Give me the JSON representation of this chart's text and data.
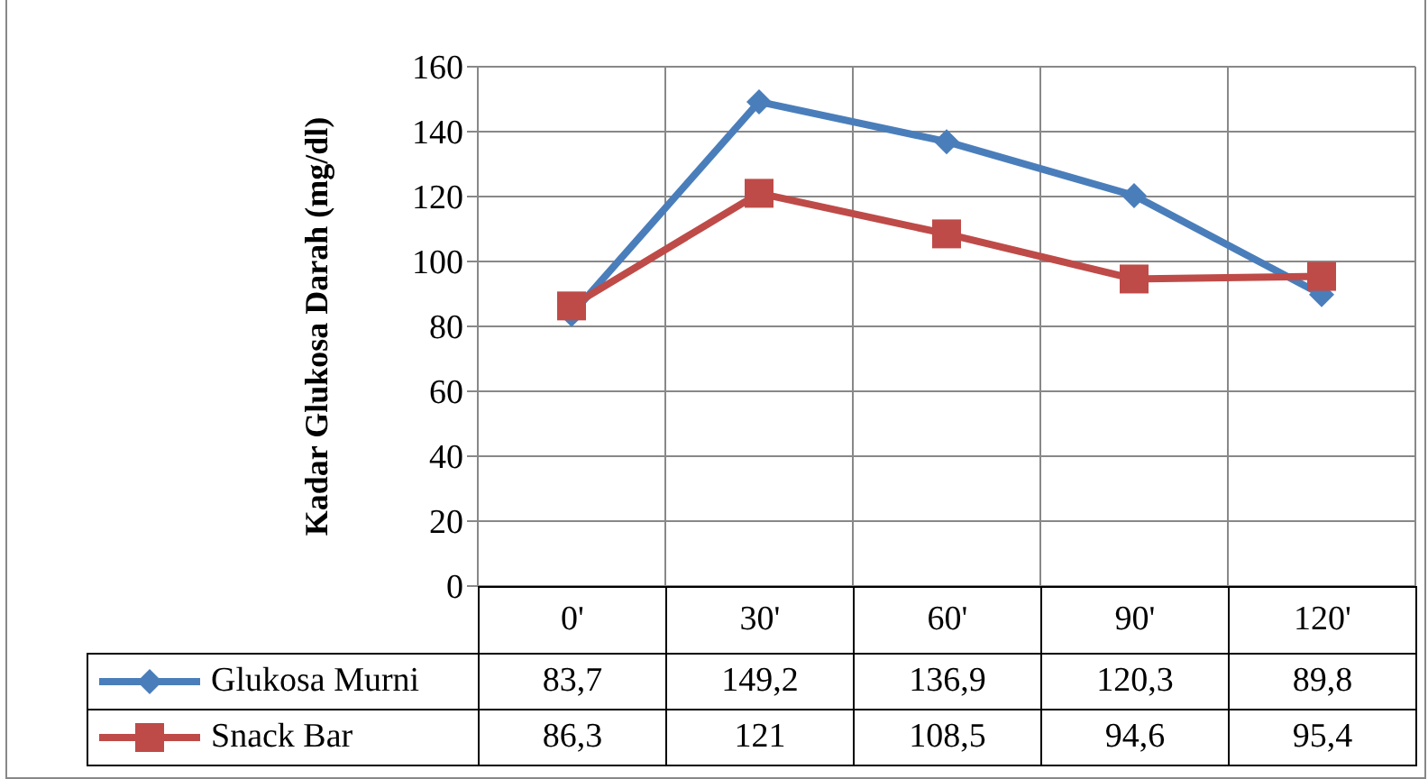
{
  "chart_data": {
    "type": "line",
    "ylabel": "Kadar  Glukosa Darah (mg/dl)",
    "categories": [
      "0'",
      "30'",
      "60'",
      "90'",
      "120'"
    ],
    "series": [
      {
        "name": "Glukosa Murni",
        "color": "#4a7ebb",
        "marker": "diamond",
        "values": [
          83.7,
          149.2,
          136.9,
          120.3,
          89.8
        ],
        "value_labels": [
          "83,7",
          "149,2",
          "136,9",
          "120,3",
          "89,8"
        ]
      },
      {
        "name": "Snack Bar",
        "color": "#be4b48",
        "marker": "square",
        "values": [
          86.3,
          121,
          108.5,
          94.6,
          95.4
        ],
        "value_labels": [
          "86,3",
          "121",
          "108,5",
          "94,6",
          "95,4"
        ]
      }
    ],
    "ylim": [
      0,
      160
    ],
    "yticks": [
      0,
      20,
      40,
      60,
      80,
      100,
      120,
      140,
      160
    ],
    "grid": true,
    "legend": "bottom"
  }
}
